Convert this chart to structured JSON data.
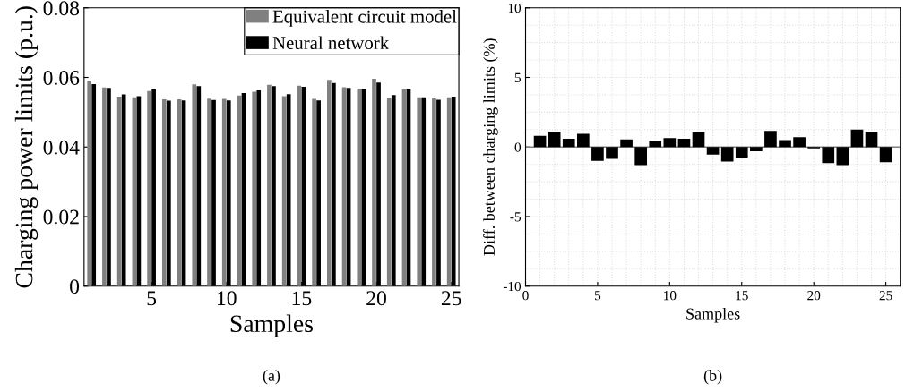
{
  "chart_data": [
    {
      "type": "bar",
      "xlabel": "Samples",
      "ylabel": "Charging power limits (p.u.)",
      "annotations": [
        "(a)"
      ],
      "x": [
        1,
        2,
        3,
        4,
        5,
        6,
        7,
        8,
        9,
        10,
        11,
        12,
        13,
        14,
        15,
        16,
        17,
        18,
        19,
        20,
        21,
        22,
        23,
        24,
        25
      ],
      "xlim": [
        0.5,
        25.5
      ],
      "xticks": [
        5,
        10,
        15,
        20,
        25
      ],
      "ylim": [
        0,
        0.08
      ],
      "yticks": [
        0,
        0.02,
        0.04,
        0.06,
        0.08
      ],
      "legend": "top right",
      "grid": false,
      "series": [
        {
          "name": "Equivalent circuit model",
          "color": "#808080",
          "values": [
            0.059,
            0.0571,
            0.0545,
            0.0543,
            0.0561,
            0.0537,
            0.0537,
            0.058,
            0.0539,
            0.0538,
            0.0548,
            0.0559,
            0.0579,
            0.0546,
            0.0576,
            0.0538,
            0.0593,
            0.0572,
            0.0568,
            0.0596,
            0.0542,
            0.0565,
            0.0543,
            0.054,
            0.0543
          ]
        },
        {
          "name": "Neural network",
          "color": "#000000",
          "values": [
            0.0581,
            0.057,
            0.0551,
            0.0546,
            0.0565,
            0.0533,
            0.0534,
            0.0575,
            0.0535,
            0.0534,
            0.0555,
            0.0563,
            0.0575,
            0.0552,
            0.0573,
            0.0534,
            0.0584,
            0.057,
            0.0567,
            0.0585,
            0.0549,
            0.0567,
            0.0543,
            0.0536,
            0.0545
          ]
        }
      ]
    },
    {
      "type": "bar",
      "xlabel": "Samples",
      "ylabel": "Diff. between charging limits (%)",
      "annotations": [
        "(b)"
      ],
      "x": [
        1,
        2,
        3,
        4,
        5,
        6,
        7,
        8,
        9,
        10,
        11,
        12,
        13,
        14,
        15,
        16,
        17,
        18,
        19,
        20,
        21,
        22,
        23,
        24,
        25
      ],
      "xlim": [
        0,
        26
      ],
      "xticks": [
        0,
        5,
        10,
        15,
        20,
        25
      ],
      "ylim": [
        -10,
        10
      ],
      "yticks": [
        -10,
        -5,
        0,
        5,
        10
      ],
      "grid": true,
      "color": "#000000",
      "values": [
        0.8,
        1.1,
        0.6,
        0.95,
        -1.0,
        -0.85,
        0.55,
        -1.3,
        0.45,
        0.65,
        0.6,
        1.05,
        -0.55,
        -1.05,
        -0.75,
        -0.3,
        1.15,
        0.5,
        0.7,
        -0.1,
        -1.15,
        -1.3,
        1.25,
        1.1,
        -1.1
      ]
    }
  ]
}
